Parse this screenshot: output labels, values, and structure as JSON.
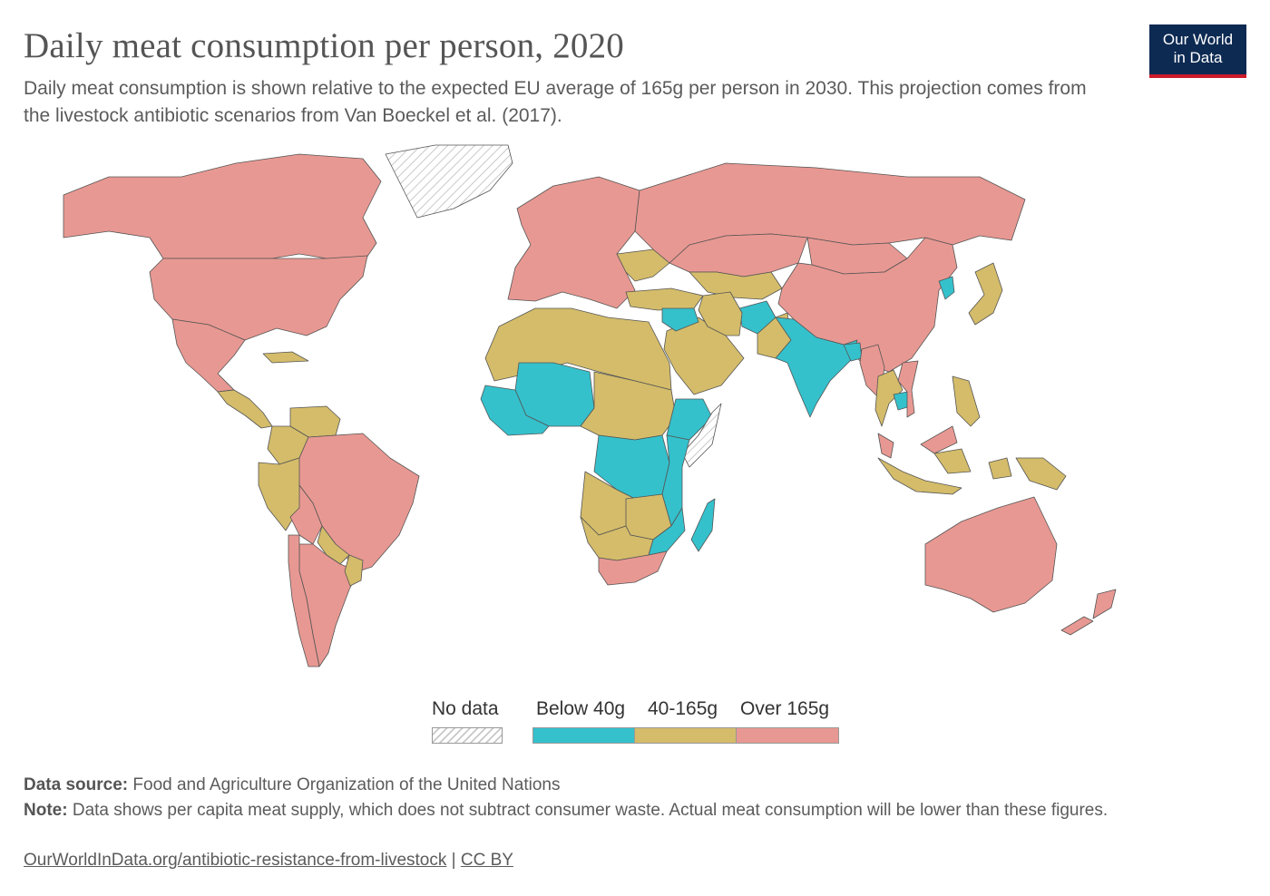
{
  "header": {
    "title": "Daily meat consumption per person, 2020",
    "subtitle": "Daily meat consumption is shown relative to the expected EU average of 165g per person in 2030. This projection comes from the livestock antibiotic scenarios from Van Boeckel et al. (2017).",
    "logo_line1": "Our World",
    "logo_line2": "in Data"
  },
  "colors": {
    "no_data": "#ffffff",
    "below_40g": "#34c1cc",
    "between_40_165g": "#d4bc6a",
    "over_165g": "#e89892",
    "border": "#555555",
    "logo_bg": "#0d2a52",
    "logo_accent": "#cc1b2b"
  },
  "legend": {
    "no_data_label": "No data",
    "bins": [
      {
        "label": "Below 40g",
        "color": "#34c1cc"
      },
      {
        "label": "40-165g",
        "color": "#d4bc6a"
      },
      {
        "label": "Over 165g",
        "color": "#e89892"
      }
    ]
  },
  "chart_data": {
    "type": "choropleth",
    "year": 2020,
    "categories": [
      "Below 40g",
      "40-165g",
      "Over 165g"
    ],
    "regions": [
      {
        "name": "Canada",
        "category": "Over 165g"
      },
      {
        "name": "United States",
        "category": "Over 165g"
      },
      {
        "name": "Mexico",
        "category": "Over 165g"
      },
      {
        "name": "Greenland",
        "category": "No data"
      },
      {
        "name": "Central America",
        "category": "40-165g"
      },
      {
        "name": "Cuba",
        "category": "40-165g"
      },
      {
        "name": "Venezuela",
        "category": "40-165g"
      },
      {
        "name": "Colombia",
        "category": "40-165g"
      },
      {
        "name": "Peru",
        "category": "40-165g"
      },
      {
        "name": "Brazil",
        "category": "Over 165g"
      },
      {
        "name": "Bolivia",
        "category": "Over 165g"
      },
      {
        "name": "Paraguay",
        "category": "40-165g"
      },
      {
        "name": "Argentina",
        "category": "Over 165g"
      },
      {
        "name": "Chile",
        "category": "Over 165g"
      },
      {
        "name": "Uruguay",
        "category": "40-165g"
      },
      {
        "name": "Europe",
        "category": "Over 165g"
      },
      {
        "name": "Ukraine",
        "category": "40-165g"
      },
      {
        "name": "Turkey",
        "category": "40-165g"
      },
      {
        "name": "Russia",
        "category": "Over 165g"
      },
      {
        "name": "Kazakhstan",
        "category": "Over 165g"
      },
      {
        "name": "Central Asia",
        "category": "40-165g"
      },
      {
        "name": "Mongolia",
        "category": "Over 165g"
      },
      {
        "name": "China",
        "category": "Over 165g"
      },
      {
        "name": "North Korea",
        "category": "Below 40g"
      },
      {
        "name": "Japan",
        "category": "40-165g"
      },
      {
        "name": "Afghanistan",
        "category": "Below 40g"
      },
      {
        "name": "Pakistan",
        "category": "40-165g"
      },
      {
        "name": "India",
        "category": "Below 40g"
      },
      {
        "name": "Bangladesh",
        "category": "Below 40g"
      },
      {
        "name": "Myanmar",
        "category": "Over 165g"
      },
      {
        "name": "Thailand",
        "category": "40-165g"
      },
      {
        "name": "Cambodia",
        "category": "Below 40g"
      },
      {
        "name": "Vietnam",
        "category": "Over 165g"
      },
      {
        "name": "Malaysia",
        "category": "Over 165g"
      },
      {
        "name": "Philippines",
        "category": "40-165g"
      },
      {
        "name": "Indonesia",
        "category": "40-165g"
      },
      {
        "name": "Papua New Guinea",
        "category": "40-165g"
      },
      {
        "name": "Australia",
        "category": "Over 165g"
      },
      {
        "name": "New Zealand",
        "category": "Over 165g"
      },
      {
        "name": "Saudi Arabia",
        "category": "40-165g"
      },
      {
        "name": "Iran",
        "category": "40-165g"
      },
      {
        "name": "Iraq / Syria",
        "category": "Below 40g"
      },
      {
        "name": "North Africa",
        "category": "40-165g"
      },
      {
        "name": "Mali / Niger",
        "category": "Below 40g"
      },
      {
        "name": "West Africa coast",
        "category": "Below 40g"
      },
      {
        "name": "Sudan / Chad",
        "category": "40-165g"
      },
      {
        "name": "Ethiopia",
        "category": "Below 40g"
      },
      {
        "name": "Somalia",
        "category": "No data"
      },
      {
        "name": "DR Congo",
        "category": "Below 40g"
      },
      {
        "name": "Tanzania / Kenya",
        "category": "Below 40g"
      },
      {
        "name": "Angola",
        "category": "40-165g"
      },
      {
        "name": "Zambia / Zimbabwe",
        "category": "40-165g"
      },
      {
        "name": "Namibia / Botswana",
        "category": "40-165g"
      },
      {
        "name": "Mozambique",
        "category": "Below 40g"
      },
      {
        "name": "South Africa",
        "category": "Over 165g"
      },
      {
        "name": "Madagascar",
        "category": "Below 40g"
      }
    ]
  },
  "footer": {
    "source_label": "Data source:",
    "source_text": "Food and Agriculture Organization of the United Nations",
    "note_label": "Note:",
    "note_text": "Data shows per capita meat supply, which does not subtract consumer waste. Actual meat consumption will be lower than these figures.",
    "url": "OurWorldInData.org/antibiotic-resistance-from-livestock",
    "separator": "|",
    "license": "CC BY"
  }
}
